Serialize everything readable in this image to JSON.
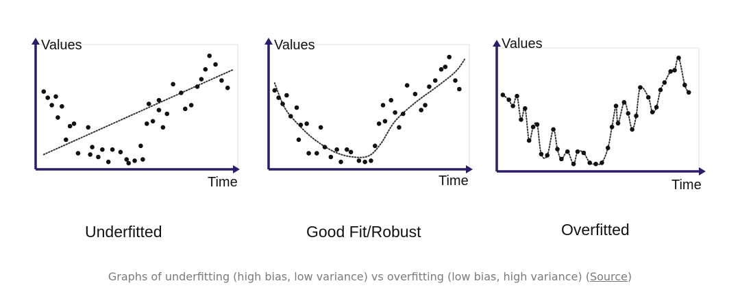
{
  "chart_data": [
    {
      "type": "scatter",
      "panel_caption": "Underfitted",
      "ylabel": "Values",
      "xlabel": "Time",
      "xlim": [
        0,
        10
      ],
      "ylim": [
        0,
        10
      ],
      "grid": false,
      "fit_curve": {
        "style": "dotted",
        "x": [
          0.4,
          9.8
        ],
        "y": [
          1.2,
          8.1
        ]
      },
      "points": [
        [
          0.4,
          6.3
        ],
        [
          0.6,
          5.8
        ],
        [
          0.8,
          5.2
        ],
        [
          1.0,
          5.9
        ],
        [
          1.1,
          4.2
        ],
        [
          1.3,
          5.1
        ],
        [
          1.5,
          2.4
        ],
        [
          1.7,
          3.5
        ],
        [
          1.9,
          3.7
        ],
        [
          2.1,
          1.3
        ],
        [
          2.7,
          1.2
        ],
        [
          2.6,
          3.4
        ],
        [
          2.8,
          1.8
        ],
        [
          3.1,
          1.0
        ],
        [
          3.3,
          1.6
        ],
        [
          3.6,
          0.6
        ],
        [
          3.8,
          1.6
        ],
        [
          4.2,
          1.4
        ],
        [
          4.5,
          0.8
        ],
        [
          4.6,
          0.5
        ],
        [
          4.9,
          0.7
        ],
        [
          5.3,
          0.8
        ],
        [
          5.2,
          1.9
        ],
        [
          5.5,
          3.7
        ],
        [
          5.8,
          3.9
        ],
        [
          5.6,
          5.3
        ],
        [
          6.1,
          5.6
        ],
        [
          6.1,
          4.8
        ],
        [
          6.3,
          3.4
        ],
        [
          6.5,
          4.5
        ],
        [
          6.8,
          6.9
        ],
        [
          7.2,
          6.2
        ],
        [
          7.4,
          4.9
        ],
        [
          7.7,
          5.2
        ],
        [
          8.0,
          6.7
        ],
        [
          8.2,
          7.3
        ],
        [
          8.4,
          8.1
        ],
        [
          8.9,
          8.5
        ],
        [
          8.6,
          9.2
        ],
        [
          9.2,
          7.2
        ],
        [
          9.5,
          6.6
        ]
      ]
    },
    {
      "type": "scatter",
      "panel_caption": "Good Fit/Robust",
      "ylabel": "Values",
      "xlabel": "Time",
      "xlim": [
        0,
        10
      ],
      "ylim": [
        0,
        10
      ],
      "grid": false,
      "fit_curve": {
        "style": "dotted",
        "x": [
          0.3,
          0.8,
          1.5,
          2.3,
          3.3,
          4.2,
          5.0,
          5.6,
          6.3,
          7.3,
          8.3,
          9.3,
          9.8
        ],
        "y": [
          7.0,
          5.0,
          3.6,
          2.4,
          1.4,
          1.0,
          1.1,
          2.1,
          3.9,
          5.4,
          6.6,
          7.9,
          9.0
        ]
      },
      "points": [
        [
          0.3,
          6.4
        ],
        [
          0.5,
          5.8
        ],
        [
          0.7,
          5.3
        ],
        [
          0.9,
          6.0
        ],
        [
          1.1,
          4.3
        ],
        [
          1.4,
          5.0
        ],
        [
          1.5,
          2.4
        ],
        [
          1.6,
          3.6
        ],
        [
          1.9,
          3.7
        ],
        [
          2.0,
          1.3
        ],
        [
          2.4,
          1.3
        ],
        [
          2.6,
          3.4
        ],
        [
          2.8,
          1.8
        ],
        [
          3.1,
          1.0
        ],
        [
          3.4,
          1.6
        ],
        [
          3.6,
          0.6
        ],
        [
          3.9,
          1.6
        ],
        [
          4.1,
          1.4
        ],
        [
          4.5,
          0.7
        ],
        [
          4.8,
          0.6
        ],
        [
          5.1,
          0.7
        ],
        [
          5.3,
          1.9
        ],
        [
          5.5,
          3.7
        ],
        [
          5.7,
          5.2
        ],
        [
          5.8,
          3.9
        ],
        [
          6.1,
          5.6
        ],
        [
          6.3,
          4.6
        ],
        [
          6.5,
          3.4
        ],
        [
          6.7,
          4.5
        ],
        [
          6.9,
          6.8
        ],
        [
          7.3,
          6.1
        ],
        [
          7.6,
          4.8
        ],
        [
          7.8,
          5.2
        ],
        [
          8.0,
          6.7
        ],
        [
          8.3,
          7.2
        ],
        [
          8.6,
          8.1
        ],
        [
          8.8,
          8.3
        ],
        [
          9.0,
          9.1
        ],
        [
          9.3,
          7.2
        ],
        [
          9.5,
          6.5
        ]
      ]
    },
    {
      "type": "scatter",
      "panel_caption": "Overfitted",
      "ylabel": "Values",
      "xlabel": "Time",
      "xlim": [
        0,
        10
      ],
      "ylim": [
        0,
        10
      ],
      "grid": false,
      "fit_curve": {
        "style": "dotted",
        "interpolate_points": true
      },
      "points": [
        [
          0.3,
          6.2
        ],
        [
          0.6,
          5.8
        ],
        [
          0.8,
          5.3
        ],
        [
          1.0,
          6.1
        ],
        [
          1.2,
          4.2
        ],
        [
          1.4,
          5.1
        ],
        [
          1.6,
          2.5
        ],
        [
          1.8,
          3.6
        ],
        [
          2.0,
          3.8
        ],
        [
          2.2,
          1.4
        ],
        [
          2.5,
          1.3
        ],
        [
          2.8,
          3.4
        ],
        [
          3.0,
          1.8
        ],
        [
          3.2,
          1.0
        ],
        [
          3.5,
          1.6
        ],
        [
          3.8,
          0.6
        ],
        [
          4.0,
          1.6
        ],
        [
          4.3,
          1.5
        ],
        [
          4.6,
          0.7
        ],
        [
          4.9,
          0.6
        ],
        [
          5.2,
          0.7
        ],
        [
          5.5,
          1.9
        ],
        [
          5.7,
          3.6
        ],
        [
          5.9,
          5.3
        ],
        [
          6.0,
          3.9
        ],
        [
          6.3,
          5.6
        ],
        [
          6.5,
          4.7
        ],
        [
          6.7,
          3.4
        ],
        [
          6.9,
          4.5
        ],
        [
          7.1,
          6.8
        ],
        [
          7.5,
          6.0
        ],
        [
          7.7,
          4.8
        ],
        [
          7.9,
          5.2
        ],
        [
          8.1,
          6.6
        ],
        [
          8.3,
          7.2
        ],
        [
          8.6,
          8.1
        ],
        [
          8.8,
          8.2
        ],
        [
          9.0,
          9.2
        ],
        [
          9.3,
          7.0
        ],
        [
          9.5,
          6.4
        ]
      ]
    }
  ],
  "caption": {
    "text": "Graphs of underfitting (high bias, low variance) vs overfitting (low bias, high variance) (",
    "link": "Source",
    "close": ")"
  },
  "colors": {
    "axis": "#2d1b6b",
    "point": "#111111",
    "curve": "#333333",
    "frame": "#dddddd"
  }
}
